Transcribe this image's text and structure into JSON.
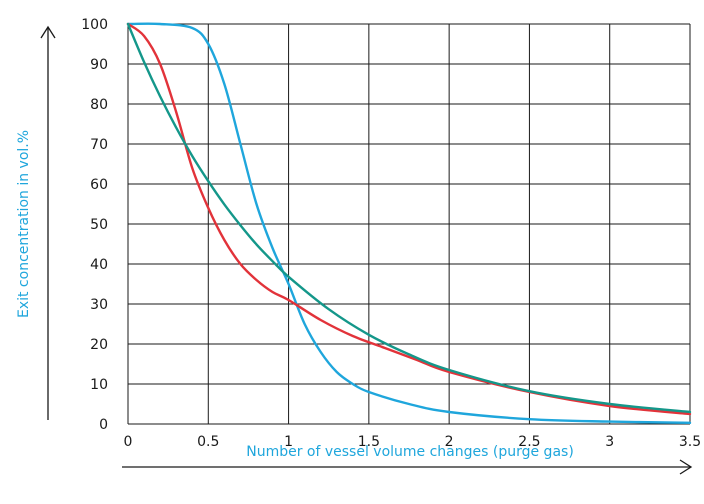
{
  "chart_data": {
    "type": "line",
    "xlabel": "Number of vessel volume changes (purge gas)",
    "ylabel": "Exit concentration in vol.%",
    "xlim": [
      0,
      3.5
    ],
    "ylim": [
      0,
      100
    ],
    "x_ticks": [
      0,
      0.5,
      1,
      1.5,
      2,
      2.5,
      3,
      3.5
    ],
    "y_ticks": [
      0,
      10,
      20,
      30,
      40,
      50,
      60,
      70,
      80,
      90,
      100
    ],
    "x_tick_labels": [
      "0",
      "0.5",
      "1",
      "1.5",
      "2",
      "2.5",
      "3",
      "3.5"
    ],
    "y_tick_labels": [
      "0",
      "10",
      "20",
      "30",
      "40",
      "50",
      "60",
      "70",
      "80",
      "90",
      "100"
    ],
    "grid": true,
    "label_color": "#1fa6dc",
    "series": [
      {
        "color": "#1fa6dc",
        "x": [
          0,
          0.2,
          0.4,
          0.5,
          0.6,
          0.7,
          0.8,
          0.9,
          1.0,
          1.1,
          1.2,
          1.3,
          1.4,
          1.5,
          1.75,
          2.0,
          2.5,
          3.0,
          3.5
        ],
        "y": [
          100,
          100,
          99,
          95,
          85,
          70,
          55,
          44,
          35,
          25,
          18,
          13,
          10,
          8,
          5,
          3,
          1.2,
          0.6,
          0.3
        ]
      },
      {
        "color": "#e2333a",
        "x": [
          0,
          0.1,
          0.2,
          0.3,
          0.4,
          0.5,
          0.6,
          0.7,
          0.8,
          0.9,
          1.0,
          1.2,
          1.4,
          1.6,
          1.8,
          2.0,
          2.5,
          3.0,
          3.5
        ],
        "y": [
          100,
          97,
          90,
          78,
          64,
          54,
          46,
          40,
          36,
          33,
          31,
          26,
          22,
          19,
          16,
          13,
          8,
          4.5,
          2.5
        ]
      },
      {
        "color": "#14978a",
        "x": [
          0,
          0.1,
          0.2,
          0.3,
          0.4,
          0.5,
          0.6,
          0.7,
          0.8,
          0.9,
          1.0,
          1.25,
          1.5,
          1.75,
          2.0,
          2.5,
          3.0,
          3.5
        ],
        "y": [
          100,
          90.5,
          81.9,
          74.1,
          67,
          60.7,
          54.9,
          49.7,
          44.9,
          40.7,
          36.8,
          28.7,
          22.3,
          17.4,
          13.5,
          8.2,
          5,
          3
        ]
      }
    ]
  }
}
